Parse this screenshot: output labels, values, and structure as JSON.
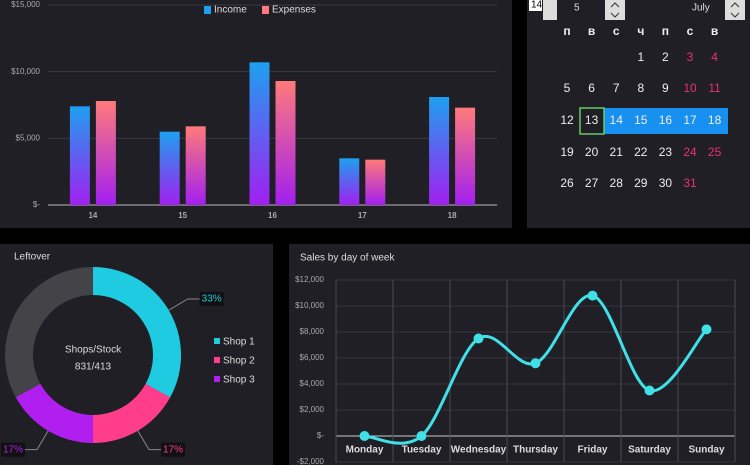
{
  "chart_data": [
    {
      "type": "bar",
      "legend": "top",
      "grid": true,
      "categories": [
        "14",
        "15",
        "16",
        "17",
        "18"
      ],
      "series": [
        {
          "name": "Income",
          "color": "#1ea0f0",
          "values": [
            7400,
            5500,
            10700,
            3500,
            8100
          ]
        },
        {
          "name": "Expenses",
          "color": "#ff7a7a",
          "values": [
            7800,
            5900,
            9300,
            3400,
            7300
          ]
        }
      ],
      "ylim": [
        0,
        15000
      ],
      "yticks": [
        {
          "value": 0,
          "label": "$-"
        },
        {
          "value": 5000,
          "label": "$5,000"
        },
        {
          "value": 10000,
          "label": "$10,000"
        },
        {
          "value": 15000,
          "label": "$15,000"
        }
      ]
    },
    {
      "type": "donut",
      "title": "Leftover",
      "center_label": "Shops/Stock",
      "center_value": "831/413",
      "legend": "right",
      "categories": [
        "Shop 1",
        "Shop 2",
        "Shop 3"
      ],
      "values": [
        33,
        17,
        17
      ],
      "value_labels": [
        "33%",
        "17%",
        "17%"
      ],
      "colors": [
        "#1ecbe1",
        "#ff3d8b",
        "#b01ff0"
      ]
    },
    {
      "type": "line",
      "title": "Sales by day of week",
      "grid": true,
      "color": "#40e0e8",
      "categories": [
        "Monday",
        "Tuesday",
        "Wednesday",
        "Thursday",
        "Friday",
        "Saturday",
        "Sunday"
      ],
      "values": [
        0,
        0,
        7500,
        5600,
        10800,
        3500,
        8200
      ],
      "ylim": [
        -2000,
        12000
      ],
      "yticks": [
        {
          "value": -2000,
          "label": "-$2,000"
        },
        {
          "value": 0,
          "label": "$-"
        },
        {
          "value": 2000,
          "label": "$2,000"
        },
        {
          "value": 4000,
          "label": "$4,000"
        },
        {
          "value": 6000,
          "label": "$6,000"
        },
        {
          "value": 8000,
          "label": "$8,000"
        },
        {
          "value": 10000,
          "label": "$10,000"
        },
        {
          "value": 12000,
          "label": "$12,000"
        }
      ]
    }
  ],
  "calendar": {
    "day_select": "14",
    "day": "5",
    "month": "July",
    "weekdays": [
      "п",
      "в",
      "с",
      "ч",
      "п",
      "с",
      "в"
    ],
    "weeks": [
      [
        null,
        null,
        null,
        1,
        2,
        3,
        4
      ],
      [
        5,
        6,
        7,
        8,
        9,
        10,
        11
      ],
      [
        12,
        13,
        14,
        15,
        16,
        17,
        18
      ],
      [
        19,
        20,
        21,
        22,
        23,
        24,
        25
      ],
      [
        26,
        27,
        28,
        29,
        30,
        31,
        null
      ]
    ]
  }
}
